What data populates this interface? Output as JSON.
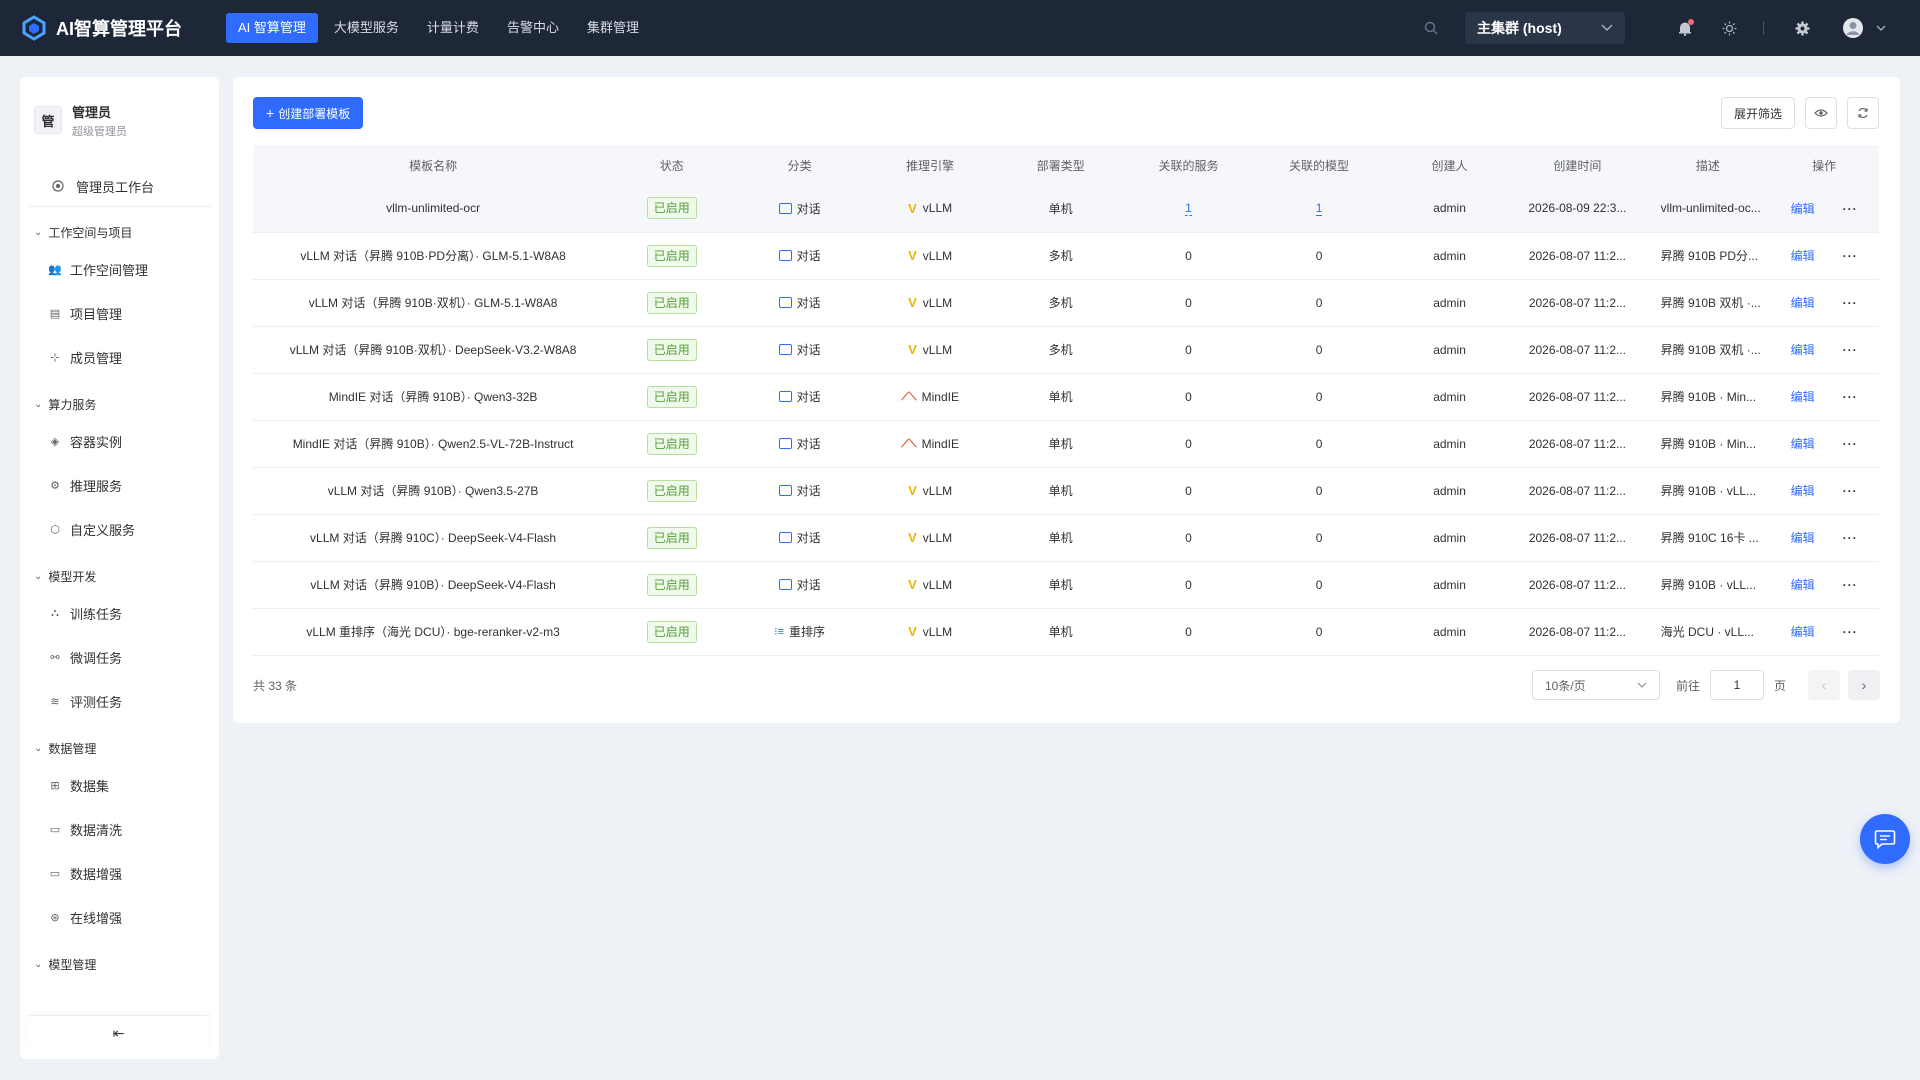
{
  "app": {
    "title": "AI智算管理平台"
  },
  "topnav": [
    {
      "label": "AI 智算管理",
      "active": true
    },
    {
      "label": "大模型服务"
    },
    {
      "label": "计量计费"
    },
    {
      "label": "告警中心"
    },
    {
      "label": "集群管理"
    }
  ],
  "cluster": {
    "selected": "主集群 (host)"
  },
  "user": {
    "avatar_text": "管",
    "name": "管理员",
    "role": "超级管理员"
  },
  "sidebar": {
    "top_item": "管理员工作台",
    "groups": [
      {
        "title": "工作空间与项目",
        "items": [
          {
            "label": "工作空间管理",
            "icon": "users-icon"
          },
          {
            "label": "项目管理",
            "icon": "list-icon"
          },
          {
            "label": "成员管理",
            "icon": "org-icon"
          }
        ]
      },
      {
        "title": "算力服务",
        "items": [
          {
            "label": "容器实例",
            "icon": "cube-icon"
          },
          {
            "label": "推理服务",
            "icon": "gear-icon"
          },
          {
            "label": "自定义服务",
            "icon": "hexagon-icon"
          }
        ]
      },
      {
        "title": "模型开发",
        "items": [
          {
            "label": "训练任务",
            "icon": "hierarchy-icon"
          },
          {
            "label": "微调任务",
            "icon": "tune-icon"
          },
          {
            "label": "评测任务",
            "icon": "layers-icon"
          }
        ]
      },
      {
        "title": "数据管理",
        "items": [
          {
            "label": "数据集",
            "icon": "grid-icon"
          },
          {
            "label": "数据清洗",
            "icon": "clean-icon"
          },
          {
            "label": "数据增强",
            "icon": "enhance-icon"
          },
          {
            "label": "在线增强",
            "icon": "globe-icon"
          }
        ]
      }
    ],
    "partial_group": "模型管理",
    "collapse_icon": "collapse-icon"
  },
  "toolbar": {
    "create_label": "创建部署模板",
    "filter_label": "展开筛选"
  },
  "table": {
    "headers": [
      "模板名称",
      "状态",
      "分类",
      "推理引擎",
      "部署类型",
      "关联的服务",
      "关联的模型",
      "创建人",
      "创建时间",
      "描述",
      "操作"
    ],
    "edit_label": "编辑",
    "rows": [
      {
        "name": "vllm-unlimited-ocr",
        "status": "已启用",
        "category": "对话",
        "engine": "vLLM",
        "deploy": "单机",
        "services": "1",
        "models": "1",
        "creator": "admin",
        "created": "2026-08-09 22:3...",
        "desc": "vllm-unlimited-oc...",
        "linked": true
      },
      {
        "name": "vLLM 对话（昇腾 910B·PD分离）· GLM-5.1-W8A8",
        "status": "已启用",
        "category": "对话",
        "engine": "vLLM",
        "deploy": "多机",
        "services": "0",
        "models": "0",
        "creator": "admin",
        "created": "2026-08-07 11:2...",
        "desc": "昇腾 910B PD分..."
      },
      {
        "name": "vLLM 对话（昇腾 910B·双机）· GLM-5.1-W8A8",
        "status": "已启用",
        "category": "对话",
        "engine": "vLLM",
        "deploy": "多机",
        "services": "0",
        "models": "0",
        "creator": "admin",
        "created": "2026-08-07 11:2...",
        "desc": "昇腾 910B 双机 ·..."
      },
      {
        "name": "vLLM 对话（昇腾 910B·双机）· DeepSeek-V3.2-W8A8",
        "status": "已启用",
        "category": "对话",
        "engine": "vLLM",
        "deploy": "多机",
        "services": "0",
        "models": "0",
        "creator": "admin",
        "created": "2026-08-07 11:2...",
        "desc": "昇腾 910B 双机 ·..."
      },
      {
        "name": "MindIE 对话（昇腾 910B）· Qwen3-32B",
        "status": "已启用",
        "category": "对话",
        "engine": "MindIE",
        "deploy": "单机",
        "services": "0",
        "models": "0",
        "creator": "admin",
        "created": "2026-08-07 11:2...",
        "desc": "昇腾 910B · Min..."
      },
      {
        "name": "MindIE 对话（昇腾 910B）· Qwen2.5-VL-72B-Instruct",
        "status": "已启用",
        "category": "对话",
        "engine": "MindIE",
        "deploy": "单机",
        "services": "0",
        "models": "0",
        "creator": "admin",
        "created": "2026-08-07 11:2...",
        "desc": "昇腾 910B · Min..."
      },
      {
        "name": "vLLM 对话（昇腾 910B）· Qwen3.5-27B",
        "status": "已启用",
        "category": "对话",
        "engine": "vLLM",
        "deploy": "单机",
        "services": "0",
        "models": "0",
        "creator": "admin",
        "created": "2026-08-07 11:2...",
        "desc": "昇腾 910B · vLL..."
      },
      {
        "name": "vLLM 对话（昇腾 910C）· DeepSeek-V4-Flash",
        "status": "已启用",
        "category": "对话",
        "engine": "vLLM",
        "deploy": "单机",
        "services": "0",
        "models": "0",
        "creator": "admin",
        "created": "2026-08-07 11:2...",
        "desc": "昇腾 910C 16卡 ..."
      },
      {
        "name": "vLLM 对话（昇腾 910B）· DeepSeek-V4-Flash",
        "status": "已启用",
        "category": "对话",
        "engine": "vLLM",
        "deploy": "单机",
        "services": "0",
        "models": "0",
        "creator": "admin",
        "created": "2026-08-07 11:2...",
        "desc": "昇腾 910B · vLL..."
      },
      {
        "name": "vLLM 重排序（海光 DCU）· bge-reranker-v2-m3",
        "status": "已启用",
        "category": "重排序",
        "engine": "vLLM",
        "deploy": "单机",
        "services": "0",
        "models": "0",
        "creator": "admin",
        "created": "2026-08-07 11:2...",
        "desc": "海光 DCU · vLL..."
      }
    ]
  },
  "pagination": {
    "total": "共 33 条",
    "page_size": "10条/页",
    "goto_label": "前往",
    "page_value": "1",
    "page_unit": "页"
  },
  "colors": {
    "accent": "#2f6bff",
    "topbar": "#1d2737",
    "success": "#52a235"
  }
}
